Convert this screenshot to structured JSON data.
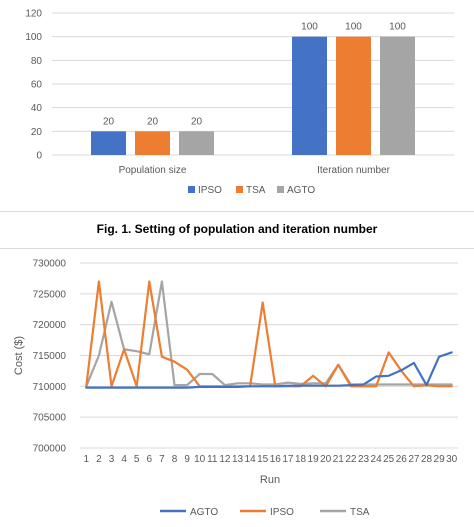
{
  "caption": "Fig. 1. Setting of population and iteration number",
  "chart_data": [
    {
      "type": "bar",
      "title": "",
      "categories": [
        "Population size",
        "Iteration number"
      ],
      "series": [
        {
          "name": "IPSO",
          "values": [
            20,
            100
          ],
          "color": "#4472c4"
        },
        {
          "name": "TSA",
          "values": [
            20,
            100
          ],
          "color": "#ed7d31"
        },
        {
          "name": "AGTO",
          "values": [
            20,
            100
          ],
          "color": "#a5a5a5"
        }
      ],
      "ylim": [
        0,
        120
      ],
      "yticks": [
        "0",
        "20",
        "40",
        "60",
        "80",
        "100",
        "120"
      ],
      "data_labels": true,
      "grid": true,
      "legend": "bottom"
    },
    {
      "type": "line",
      "title": "",
      "xlabel": "Run",
      "ylabel": "Cost ($)",
      "x": [
        1,
        2,
        3,
        4,
        5,
        6,
        7,
        8,
        9,
        10,
        11,
        12,
        13,
        14,
        15,
        16,
        17,
        18,
        19,
        20,
        21,
        22,
        23,
        24,
        25,
        26,
        27,
        28,
        29,
        30
      ],
      "ylim": [
        700000,
        730000
      ],
      "yticks": [
        "700000",
        "705000",
        "710000",
        "715000",
        "720000",
        "725000",
        "730000"
      ],
      "series": [
        {
          "name": "AGTO",
          "color": "#4472c4",
          "values": [
            709800,
            709800,
            709800,
            709800,
            709800,
            709800,
            709800,
            709800,
            709800,
            709900,
            709900,
            709900,
            709900,
            710000,
            710000,
            710000,
            710100,
            710100,
            710100,
            710100,
            710100,
            710200,
            710300,
            711600,
            711700,
            712600,
            713800,
            710200,
            714800,
            715500
          ]
        },
        {
          "name": "IPSO",
          "color": "#ed7d31",
          "values": [
            710000,
            727000,
            710000,
            716000,
            710000,
            727000,
            714800,
            714000,
            712700,
            710000,
            710000,
            710000,
            710000,
            710000,
            723600,
            710000,
            710000,
            710000,
            711700,
            710000,
            713500,
            710000,
            710000,
            710000,
            715500,
            712500,
            710000,
            710200,
            710000,
            710000
          ]
        },
        {
          "name": "TSA",
          "color": "#a5a5a5",
          "values": [
            710000,
            715000,
            723700,
            716000,
            715700,
            715200,
            727000,
            710200,
            710200,
            712000,
            712000,
            710200,
            710500,
            710500,
            710300,
            710300,
            710600,
            710400,
            710500,
            710500,
            713500,
            710300,
            710300,
            710300,
            710300,
            710300,
            710300,
            710300,
            710300,
            710300
          ]
        }
      ],
      "grid": true,
      "legend": "bottom"
    }
  ]
}
